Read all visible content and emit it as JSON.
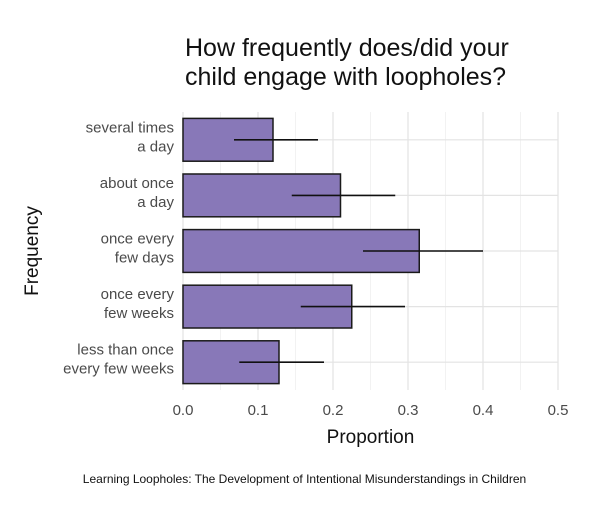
{
  "chart_data": {
    "type": "bar",
    "orientation": "horizontal",
    "title_lines": [
      "How frequently does/did your",
      "child engage with loopholes?"
    ],
    "xlabel": "Proportion",
    "ylabel": "Frequency",
    "categories": [
      [
        "several times",
        "a day"
      ],
      [
        "about once",
        "a day"
      ],
      [
        "once every",
        "few days"
      ],
      [
        "once every",
        "few weeks"
      ],
      [
        "less than once",
        "every few weeks"
      ]
    ],
    "values": [
      0.12,
      0.21,
      0.315,
      0.225,
      0.128
    ],
    "error_low": [
      0.068,
      0.145,
      0.24,
      0.157,
      0.075
    ],
    "error_high": [
      0.18,
      0.283,
      0.4,
      0.296,
      0.188
    ],
    "xlim": [
      0,
      0.5
    ],
    "xticks": [
      "0.0",
      "0.1",
      "0.2",
      "0.3",
      "0.4",
      "0.5"
    ],
    "grid": true,
    "bar_color": "#8878b8"
  },
  "caption": "Learning Loopholes: The Development of Intentional Misunderstandings in Children"
}
